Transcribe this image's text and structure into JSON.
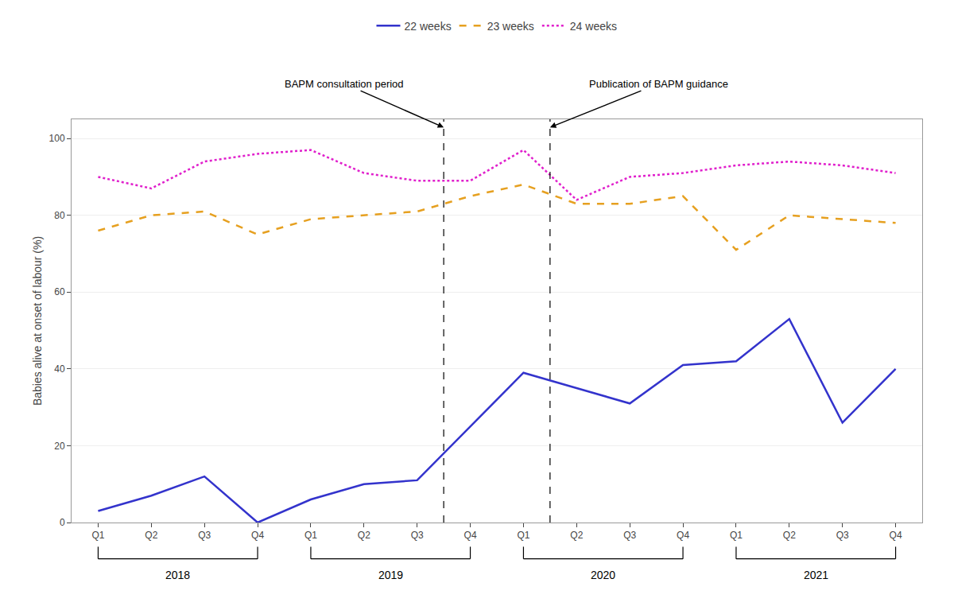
{
  "chart_data": {
    "type": "line",
    "ylabel": "Babies alive at onset of labour (%)",
    "categories": [
      "Q1",
      "Q2",
      "Q3",
      "Q4",
      "Q1",
      "Q2",
      "Q3",
      "Q4",
      "Q1",
      "Q2",
      "Q3",
      "Q4",
      "Q1",
      "Q2",
      "Q3",
      "Q4"
    ],
    "category_groups": [
      "2018",
      "2018",
      "2018",
      "2018",
      "2019",
      "2019",
      "2019",
      "2019",
      "2020",
      "2020",
      "2020",
      "2020",
      "2021",
      "2021",
      "2021",
      "2021"
    ],
    "series": [
      {
        "name": "22 weeks",
        "color": "#3333cc",
        "line_style": "solid",
        "values": [
          3,
          7,
          12,
          0,
          6,
          10,
          11,
          25,
          39,
          35,
          31,
          41,
          42,
          53,
          26,
          40
        ]
      },
      {
        "name": "23 weeks",
        "color": "#e6a020",
        "line_style": "dashed",
        "values": [
          76,
          80,
          81,
          75,
          79,
          80,
          81,
          85,
          88,
          83,
          83,
          85,
          71,
          80,
          79,
          78
        ]
      },
      {
        "name": "24 weeks",
        "color": "#e020cc",
        "line_style": "dotted",
        "values": [
          90,
          87,
          94,
          96,
          97,
          91,
          89,
          89,
          97,
          84,
          90,
          91,
          93,
          94,
          93,
          91
        ]
      }
    ],
    "ylim": [
      0,
      105
    ],
    "yticks": [
      0,
      20,
      40,
      60,
      80,
      100
    ],
    "grid": true,
    "legend": "top",
    "annotations": [
      {
        "text": "BAPM consultation period",
        "x": 6.5,
        "line_style": "dashed"
      },
      {
        "text": "Publication of BAPM guidance",
        "x": 8.5,
        "line_style": "dashed"
      }
    ]
  }
}
